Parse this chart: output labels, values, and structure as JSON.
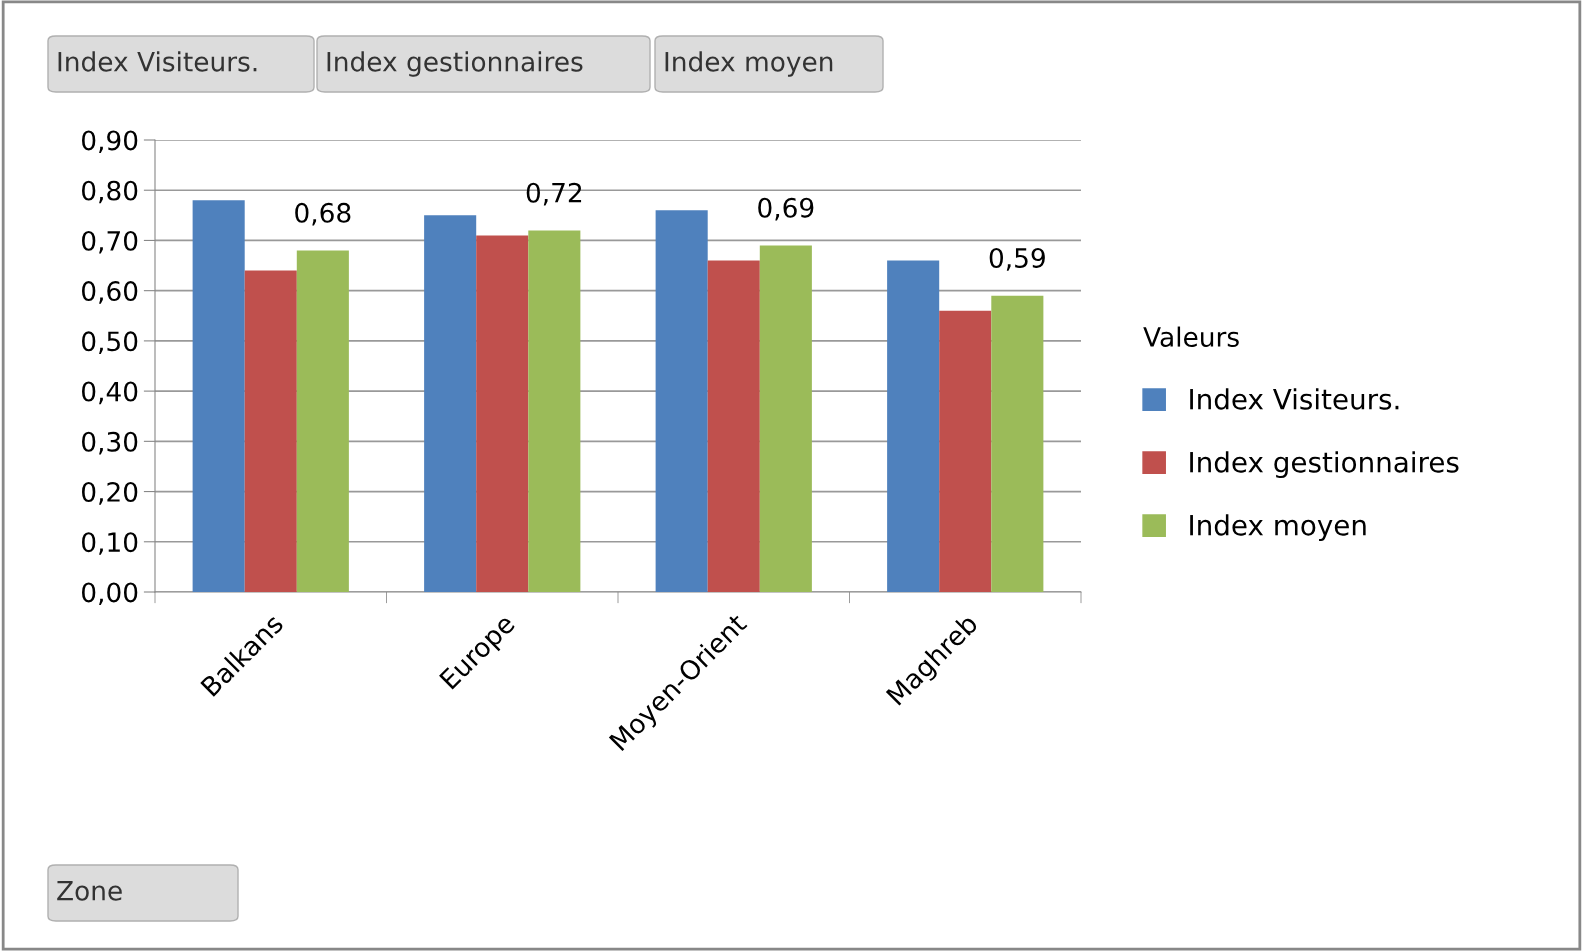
{
  "chart_data": {
    "type": "bar",
    "categories": [
      "Balkans",
      "Europe",
      "Moyen-Orient",
      "Maghreb"
    ],
    "series": [
      {
        "name": "Index Visiteurs.",
        "color": "#4f81bd",
        "values": [
          0.78,
          0.75,
          0.76,
          0.66
        ]
      },
      {
        "name": "Index gestionnaires",
        "color": "#c0504d",
        "values": [
          0.64,
          0.71,
          0.66,
          0.56
        ]
      },
      {
        "name": "Index moyen",
        "color": "#9bbb59",
        "values": [
          0.68,
          0.72,
          0.69,
          0.59
        ],
        "value_labels": [
          "0,68",
          "0,72",
          "0,69",
          "0,59"
        ]
      }
    ],
    "ylim": [
      0,
      0.9
    ],
    "yticks": [
      {
        "value": 0,
        "label": "0,00"
      },
      {
        "value": 0.1,
        "label": "0,10"
      },
      {
        "value": 0.2,
        "label": "0,20"
      },
      {
        "value": 0.3,
        "label": "0,30"
      },
      {
        "value": 0.4,
        "label": "0,40"
      },
      {
        "value": 0.5,
        "label": "0,50"
      },
      {
        "value": 0.6,
        "label": "0,60"
      },
      {
        "value": 0.7,
        "label": "0,70"
      },
      {
        "value": 0.8,
        "label": "0,80"
      },
      {
        "value": 0.9,
        "label": "0,90"
      }
    ],
    "grid": "y",
    "legend": "right",
    "legend_title": "Valeurs",
    "annotations": [
      "Index Visiteurs.",
      "Index gestionnaires",
      "Index moyen",
      "Zone"
    ]
  }
}
